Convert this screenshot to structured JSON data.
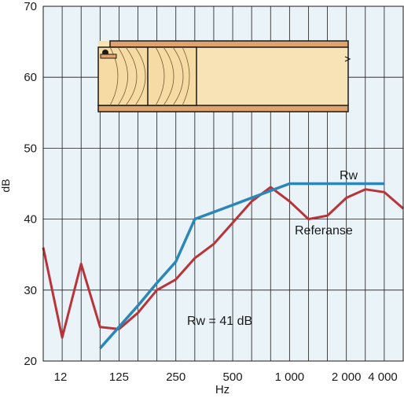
{
  "chart_data": {
    "type": "line",
    "title": "",
    "xlabel": "Hz",
    "ylabel": "dB",
    "ylim": [
      20,
      70
    ],
    "yticks": [
      20,
      30,
      40,
      50,
      60,
      70
    ],
    "x_categories": [
      "12",
      "125",
      "250",
      "500",
      "1 000",
      "2 000",
      "4 000"
    ],
    "x_positions": [
      "63",
      "80",
      "100",
      "125",
      "160",
      "200",
      "250",
      "315",
      "400",
      "500",
      "630",
      "800",
      "1000",
      "1250",
      "1600",
      "2000",
      "2500",
      "3150",
      "4000",
      "5000"
    ],
    "grid": true,
    "background": "#e9f3f8",
    "series": [
      {
        "name": "Referanse",
        "color": "#b8343a",
        "values": [
          36.0,
          23.3,
          33.7,
          24.8,
          24.5,
          26.8,
          30.0,
          31.5,
          34.5,
          36.5,
          39.5,
          42.5,
          44.5,
          42.5,
          40.0,
          40.5,
          43.0,
          44.2,
          43.8,
          41.5
        ]
      },
      {
        "name": "Rw",
        "color": "#2d86b8",
        "values": [
          null,
          null,
          null,
          21.8,
          24.8,
          27.8,
          31.0,
          34.0,
          40.0,
          41.0,
          42.0,
          43.0,
          44.0,
          45.0,
          45.0,
          45.0,
          45.0,
          45.0,
          45.0,
          null
        ]
      }
    ],
    "annotations": {
      "rw_label": "Rw",
      "ref_label": "Referanse",
      "rw_value_label": "Rw = 41 dB"
    }
  }
}
